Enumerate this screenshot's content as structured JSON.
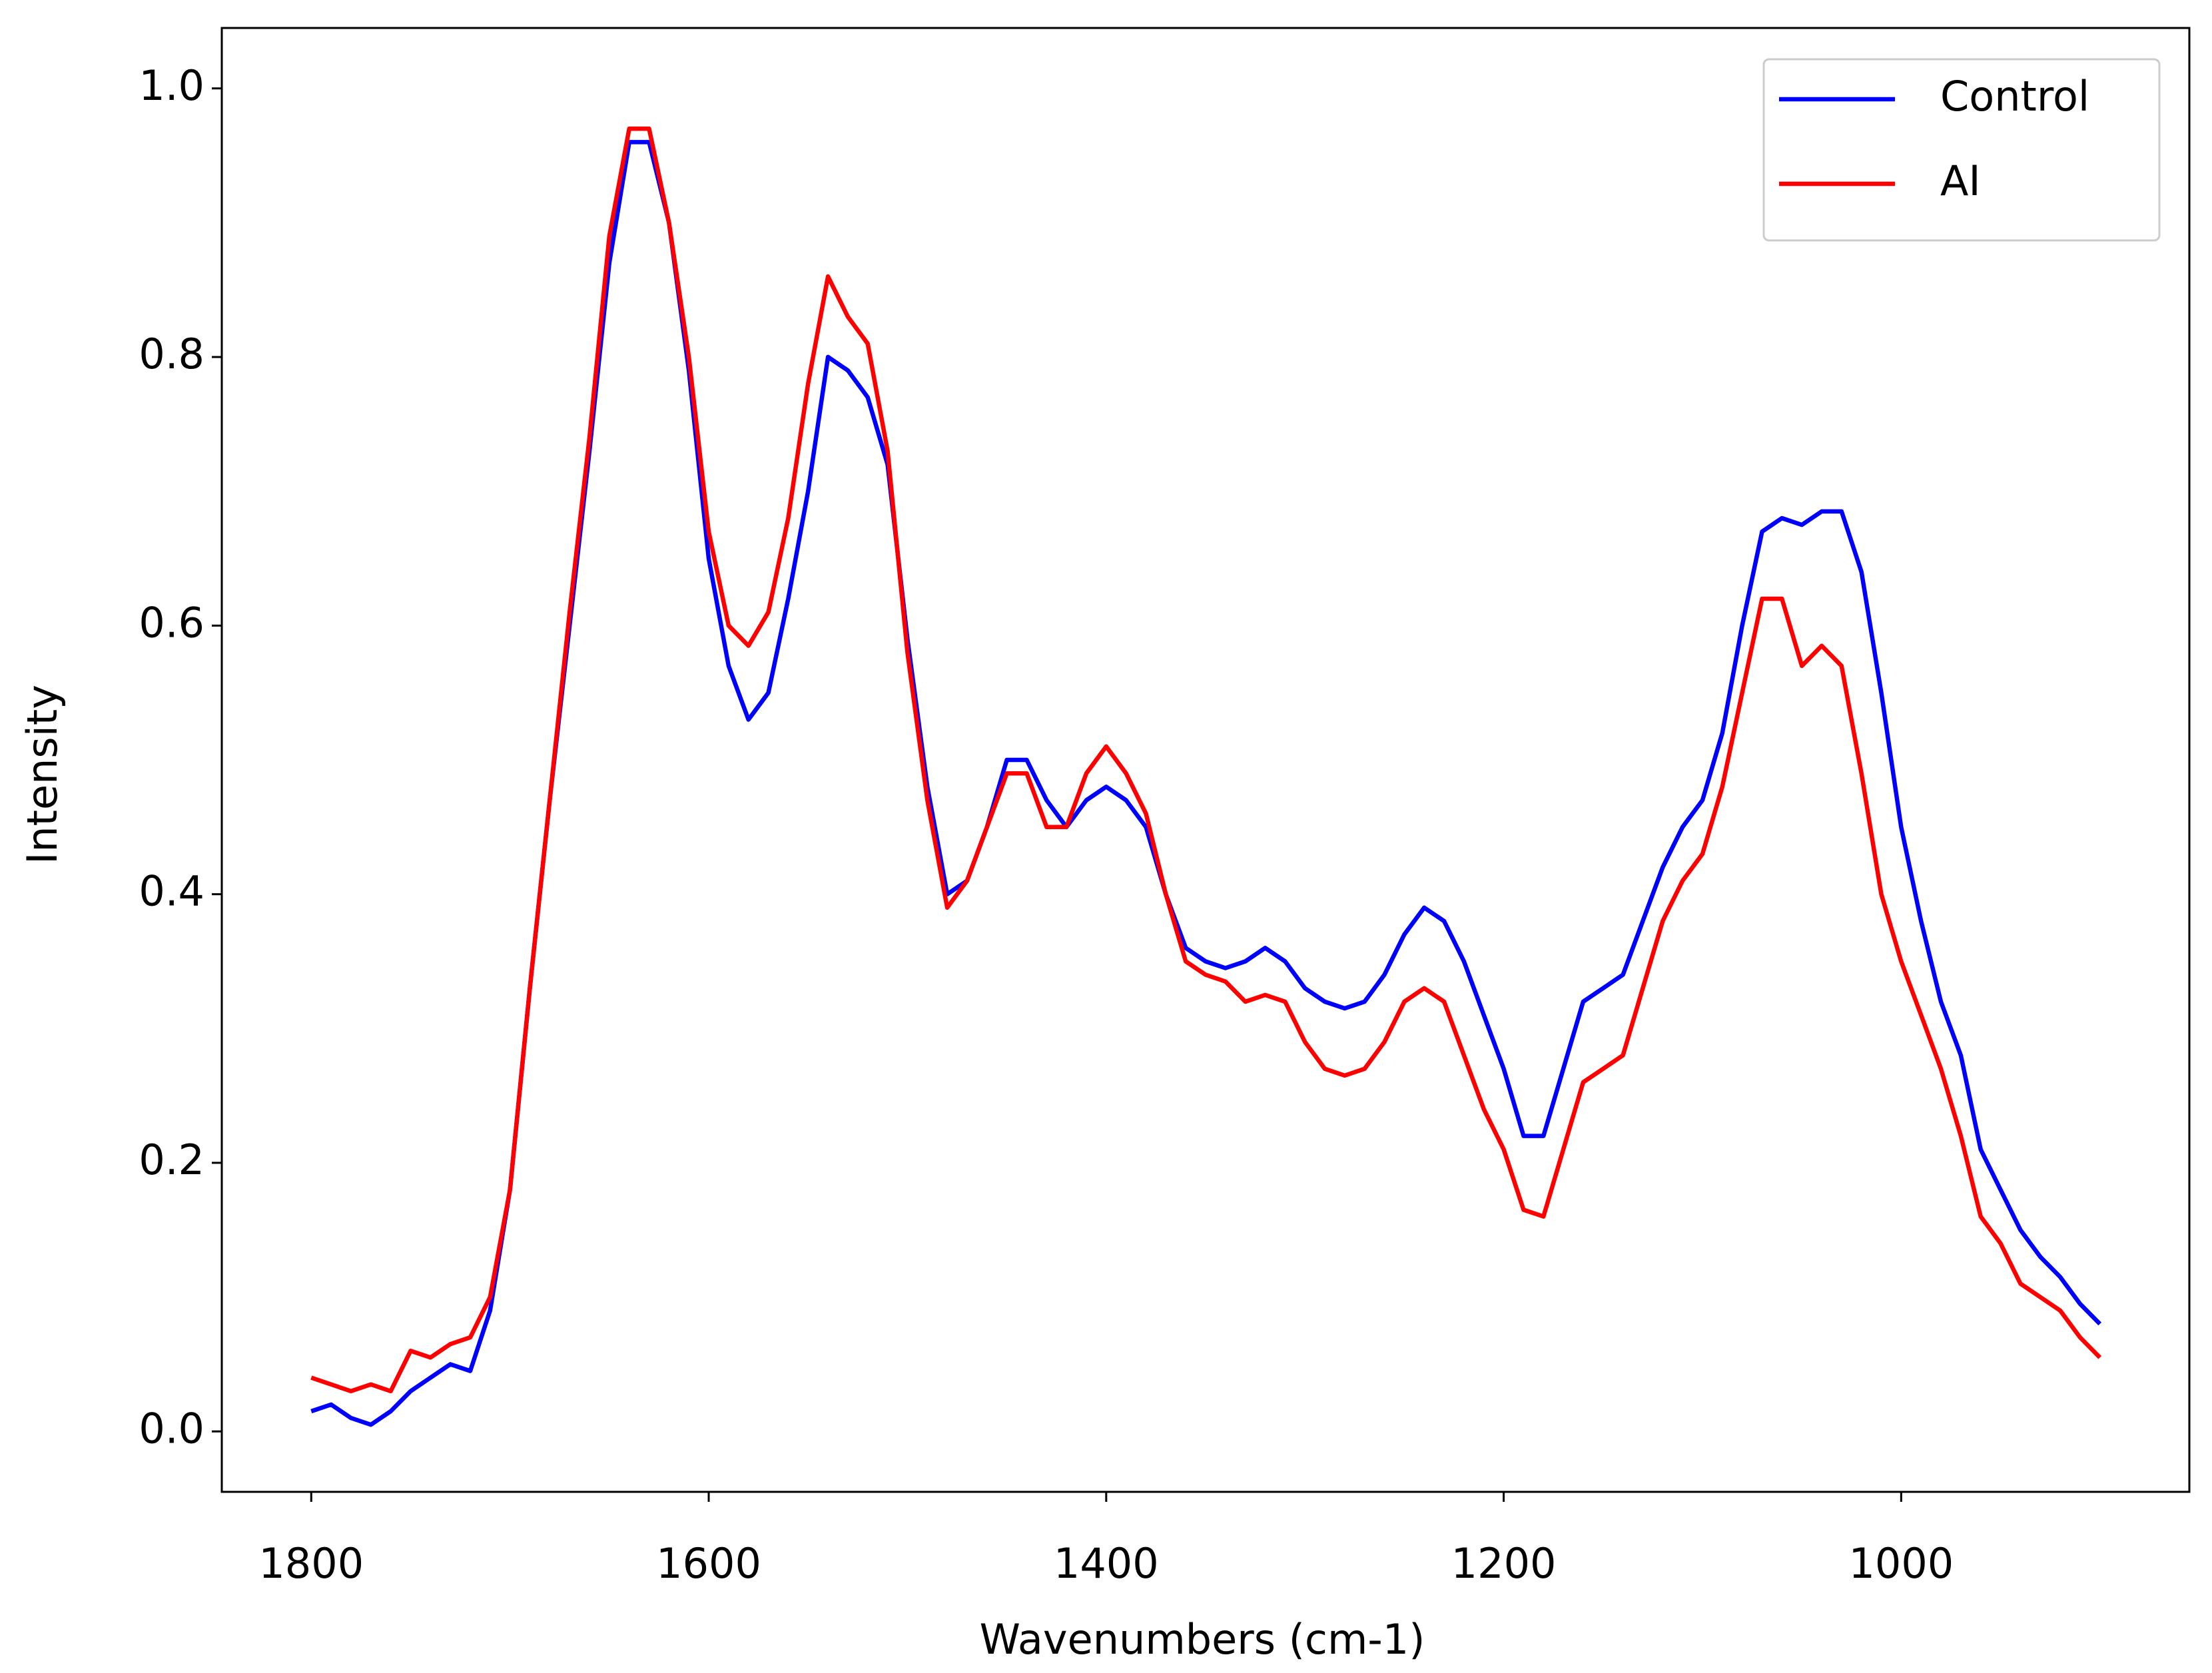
{
  "chart_data": {
    "type": "line",
    "xlabel": "Wavenumbers (cm-1)",
    "ylabel": "Intensity",
    "x": [
      1800,
      1790,
      1780,
      1770,
      1760,
      1750,
      1740,
      1730,
      1720,
      1710,
      1700,
      1690,
      1680,
      1670,
      1660,
      1650,
      1640,
      1630,
      1620,
      1610,
      1600,
      1590,
      1580,
      1570,
      1560,
      1550,
      1540,
      1530,
      1520,
      1510,
      1500,
      1490,
      1480,
      1470,
      1460,
      1450,
      1440,
      1430,
      1420,
      1410,
      1400,
      1390,
      1380,
      1370,
      1360,
      1350,
      1340,
      1330,
      1320,
      1310,
      1300,
      1290,
      1280,
      1270,
      1260,
      1250,
      1240,
      1230,
      1220,
      1210,
      1200,
      1190,
      1180,
      1170,
      1160,
      1150,
      1140,
      1130,
      1120,
      1110,
      1100,
      1090,
      1080,
      1070,
      1060,
      1050,
      1040,
      1030,
      1020,
      1010,
      1000,
      990,
      980,
      970,
      960,
      950,
      940,
      930,
      920,
      910,
      900
    ],
    "series": [
      {
        "name": "Control",
        "color": "#0000ff",
        "values": [
          0.015,
          0.02,
          0.01,
          0.005,
          0.015,
          0.03,
          0.04,
          0.05,
          0.045,
          0.09,
          0.18,
          0.33,
          0.47,
          0.6,
          0.73,
          0.87,
          0.96,
          0.96,
          0.9,
          0.79,
          0.65,
          0.57,
          0.53,
          0.55,
          0.62,
          0.7,
          0.8,
          0.79,
          0.77,
          0.72,
          0.59,
          0.48,
          0.4,
          0.41,
          0.45,
          0.5,
          0.5,
          0.47,
          0.45,
          0.47,
          0.48,
          0.47,
          0.45,
          0.4,
          0.36,
          0.35,
          0.345,
          0.35,
          0.36,
          0.35,
          0.33,
          0.32,
          0.315,
          0.32,
          0.34,
          0.37,
          0.39,
          0.38,
          0.35,
          0.31,
          0.27,
          0.22,
          0.22,
          0.27,
          0.32,
          0.33,
          0.34,
          0.38,
          0.42,
          0.45,
          0.47,
          0.52,
          0.6,
          0.67,
          0.68,
          0.675,
          0.685,
          0.685,
          0.64,
          0.55,
          0.45,
          0.38,
          0.32,
          0.28,
          0.21,
          0.18,
          0.15,
          0.13,
          0.115,
          0.095,
          0.08
        ]
      },
      {
        "name": "AI",
        "color": "#ff0000",
        "values": [
          0.04,
          0.035,
          0.03,
          0.035,
          0.03,
          0.06,
          0.055,
          0.065,
          0.07,
          0.1,
          0.18,
          0.33,
          0.47,
          0.61,
          0.74,
          0.89,
          0.97,
          0.97,
          0.9,
          0.8,
          0.67,
          0.6,
          0.585,
          0.61,
          0.68,
          0.78,
          0.86,
          0.83,
          0.81,
          0.73,
          0.58,
          0.47,
          0.39,
          0.41,
          0.45,
          0.49,
          0.49,
          0.45,
          0.45,
          0.49,
          0.51,
          0.49,
          0.46,
          0.4,
          0.35,
          0.34,
          0.335,
          0.32,
          0.325,
          0.32,
          0.29,
          0.27,
          0.265,
          0.27,
          0.29,
          0.32,
          0.33,
          0.32,
          0.28,
          0.24,
          0.21,
          0.165,
          0.16,
          0.21,
          0.26,
          0.27,
          0.28,
          0.33,
          0.38,
          0.41,
          0.43,
          0.48,
          0.55,
          0.62,
          0.62,
          0.57,
          0.585,
          0.57,
          0.49,
          0.4,
          0.35,
          0.31,
          0.27,
          0.22,
          0.16,
          0.14,
          0.11,
          0.1,
          0.09,
          0.07,
          0.055
        ]
      }
    ],
    "xlim": [
      1845,
      855
    ],
    "xticks": [
      1800,
      1600,
      1400,
      1200,
      1000
    ],
    "ylim": [
      -0.045,
      1.045
    ],
    "yticks": [
      {
        "value": 0,
        "label": "0.0"
      },
      0.2,
      0.4,
      0.6,
      0.8,
      {
        "value": 1,
        "label": "1.0"
      }
    ],
    "legend": "upper right"
  }
}
